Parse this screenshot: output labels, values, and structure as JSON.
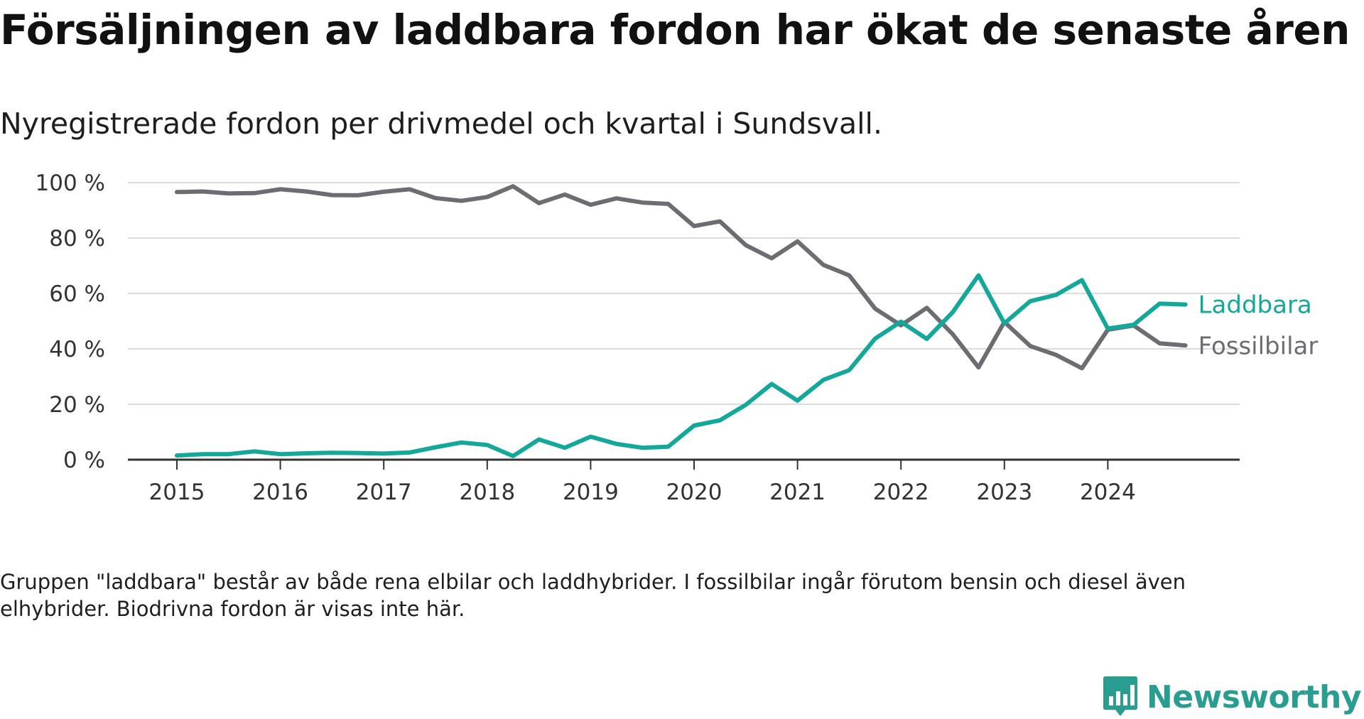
{
  "title": "Försäljningen av laddbara fordon har ökat de senaste åren",
  "subtitle": "Nyregistrerade fordon per drivmedel och kvartal i Sundsvall.",
  "note": "Gruppen \"laddbara\" består av både rena elbilar och laddhybrider. I fossilbilar ingår förutom bensin och diesel även elhybrider. Biodrivna fordon är visas inte här.",
  "brand": {
    "name": "Newsworthy",
    "icon": "newsworthy-logo-icon"
  },
  "colors": {
    "laddbara": "#14a89b",
    "fossil": "#6d6c72",
    "grid": "#dcdcdc",
    "axis": "#333333",
    "brand": "#2a9d91"
  },
  "chart_data": {
    "type": "line",
    "title": "Försäljningen av laddbara fordon har ökat de senaste åren",
    "xlabel": "",
    "ylabel": "",
    "ylim": [
      0,
      100
    ],
    "yticks": [
      0,
      20,
      40,
      60,
      80,
      100
    ],
    "ytick_labels": [
      "0 %",
      "20 %",
      "40 %",
      "60 %",
      "80 %",
      "100 %"
    ],
    "x_tick_labels": [
      "2015",
      "2016",
      "2017",
      "2018",
      "2019",
      "2020",
      "2021",
      "2022",
      "2023",
      "2024"
    ],
    "x_tick_indices": [
      0,
      4,
      8,
      12,
      16,
      20,
      24,
      28,
      32,
      36
    ],
    "categories": [
      "2015 Q1",
      "2015 Q2",
      "2015 Q3",
      "2015 Q4",
      "2016 Q1",
      "2016 Q2",
      "2016 Q3",
      "2016 Q4",
      "2017 Q1",
      "2017 Q2",
      "2017 Q3",
      "2017 Q4",
      "2018 Q1",
      "2018 Q2",
      "2018 Q3",
      "2018 Q4",
      "2019 Q1",
      "2019 Q2",
      "2019 Q3",
      "2019 Q4",
      "2020 Q1",
      "2020 Q2",
      "2020 Q3",
      "2020 Q4",
      "2021 Q1",
      "2021 Q2",
      "2021 Q3",
      "2021 Q4",
      "2022 Q1",
      "2022 Q2",
      "2022 Q3",
      "2022 Q4",
      "2023 Q1",
      "2023 Q2",
      "2023 Q3",
      "2023 Q4",
      "2024 Q1",
      "2024 Q2",
      "2024 Q3",
      "2024 Q4"
    ],
    "series": [
      {
        "name": "Laddbara",
        "label": "Laddbara",
        "color": "#14a89b",
        "values": [
          1.5,
          2,
          2,
          3,
          2,
          2.3,
          2.5,
          2.4,
          2.2,
          2.6,
          4.5,
          6.2,
          5.3,
          1.3,
          7.3,
          4.3,
          8.3,
          5.7,
          4.3,
          4.7,
          12.3,
          14.2,
          19.8,
          27.3,
          21.3,
          28.8,
          32.3,
          43.7,
          49.8,
          43.6,
          53.2,
          66.5,
          49.2,
          57.2,
          59.5,
          64.8,
          47.3,
          48.7,
          56.3,
          56.0
        ]
      },
      {
        "name": "Fossilbilar",
        "label": "Fossilbilar",
        "color": "#6d6c72",
        "values": [
          96.6,
          96.8,
          96.1,
          96.2,
          97.6,
          96.8,
          95.5,
          95.4,
          96.7,
          97.6,
          94.4,
          93.4,
          94.8,
          98.7,
          92.6,
          95.7,
          92.0,
          94.3,
          92.8,
          92.3,
          84.3,
          86.0,
          77.4,
          72.7,
          78.8,
          70.3,
          66.5,
          54.5,
          48.5,
          54.8,
          45.3,
          33.3,
          49.7,
          41.0,
          37.8,
          33.0,
          46.9,
          48.4,
          42.0,
          41.2
        ]
      }
    ]
  }
}
